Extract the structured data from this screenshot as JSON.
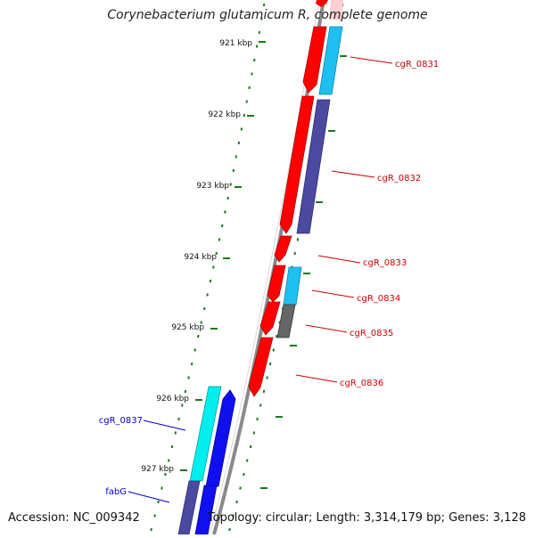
{
  "title": "Corynebacterium glutamicum R, complete genome",
  "footer": {
    "accession": "Accession: NC_009342",
    "info": "Topology: circular; Length: 3,314,179 bp; Genes: 3,128"
  },
  "colors": {
    "background": "#ffffff",
    "backbone": "#888888",
    "ticks": "#1a7a1a",
    "label_reverse": "#cc0000",
    "label_forward": "#0000cc",
    "gene_red": "#ff0000",
    "gene_navy": "#4b4aa0",
    "gene_skyblue": "#1ec0f0",
    "gene_gray": "#666666",
    "gene_cyan": "#00eeee",
    "gene_blue": "#1010ee"
  },
  "scale_labels": [
    "921 kbp",
    "922 kbp",
    "923 kbp",
    "924 kbp",
    "925 kbp",
    "926 kbp",
    "927 kbp"
  ],
  "gene_labels": {
    "reverse": [
      "cgR_0831",
      "cgR_0832",
      "cgR_0833",
      "cgR_0834",
      "cgR_0835",
      "cgR_0836"
    ],
    "forward": [
      "cgR_0837",
      "fabG"
    ]
  }
}
